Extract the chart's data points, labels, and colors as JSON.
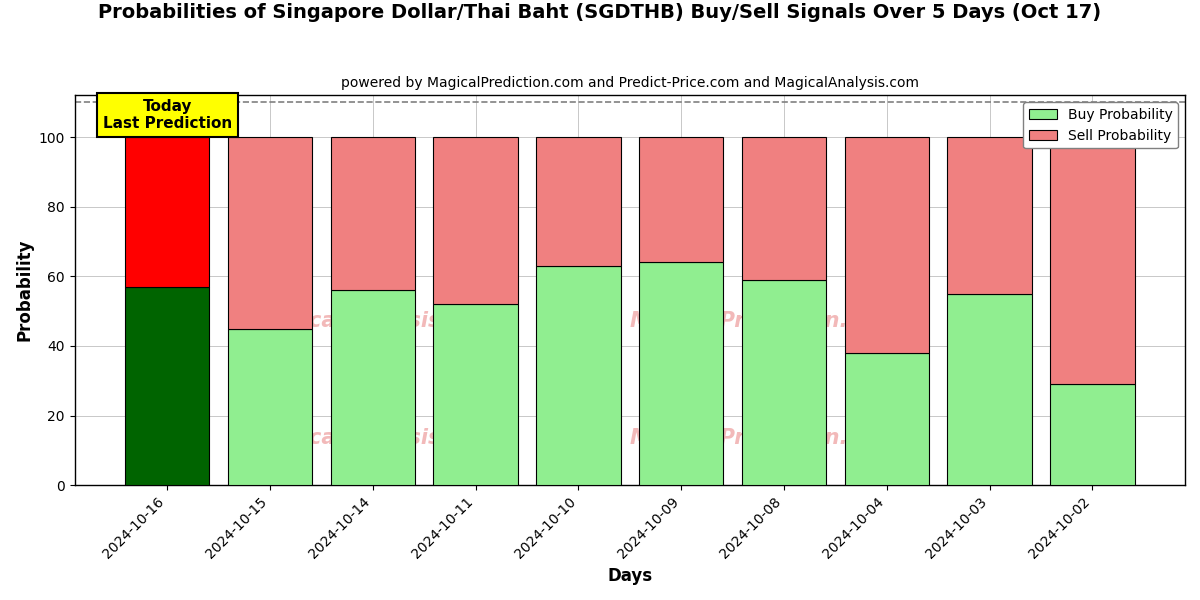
{
  "title": "Probabilities of Singapore Dollar/Thai Baht (SGDTHB) Buy/Sell Signals Over 5 Days (Oct 17)",
  "subtitle": "powered by MagicalPrediction.com and Predict-Price.com and MagicalAnalysis.com",
  "xlabel": "Days",
  "ylabel": "Probability",
  "categories": [
    "2024-10-16",
    "2024-10-15",
    "2024-10-14",
    "2024-10-11",
    "2024-10-10",
    "2024-10-09",
    "2024-10-08",
    "2024-10-04",
    "2024-10-03",
    "2024-10-02"
  ],
  "buy_values": [
    57,
    45,
    56,
    52,
    63,
    64,
    59,
    38,
    55,
    29
  ],
  "sell_values": [
    43,
    55,
    44,
    48,
    37,
    36,
    41,
    62,
    45,
    71
  ],
  "today_bar_index": 0,
  "buy_color_today": "#006400",
  "sell_color_today": "#FF0000",
  "buy_color_normal": "#90EE90",
  "sell_color_normal": "#F08080",
  "today_label": "Today\nLast Prediction",
  "legend_buy": "Buy Probability",
  "legend_sell": "Sell Probability",
  "ylim": [
    0,
    112
  ],
  "yticks": [
    0,
    20,
    40,
    60,
    80,
    100
  ],
  "dashed_line_y": 110,
  "background_color": "#ffffff",
  "title_fontsize": 14,
  "subtitle_fontsize": 10
}
